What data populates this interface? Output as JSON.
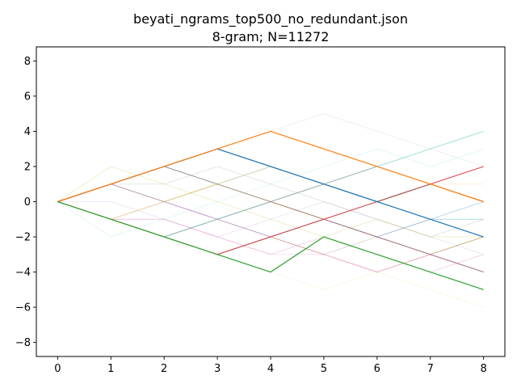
{
  "chart_data": {
    "type": "line",
    "title": "beyati_ngrams_top500_no_redundant.json",
    "subtitle": "8-gram; N=11272",
    "xlabel": "",
    "ylabel": "",
    "xlim": [
      -0.4,
      8.4
    ],
    "ylim": [
      -8.8,
      8.8
    ],
    "x_ticks": [
      0,
      1,
      2,
      3,
      4,
      5,
      6,
      7,
      8
    ],
    "y_ticks": [
      -8,
      -6,
      -4,
      -2,
      0,
      2,
      4,
      6,
      8
    ],
    "grid": false,
    "legend": "none",
    "x": [
      0,
      1,
      2,
      3,
      4,
      5,
      6,
      7,
      8
    ],
    "series": [
      {
        "color": "#1f77b4",
        "opacity": 1.0,
        "width": 1.2,
        "values": [
          0,
          1,
          2,
          3,
          2,
          1,
          0,
          -1,
          -2
        ]
      },
      {
        "color": "#ff7f0e",
        "opacity": 1.0,
        "width": 1.2,
        "values": [
          0,
          1,
          2,
          3,
          4,
          3,
          2,
          1,
          0
        ]
      },
      {
        "color": "#2ca02c",
        "opacity": 1.0,
        "width": 1.2,
        "values": [
          0,
          -1,
          -2,
          -3,
          -4,
          -2,
          -3,
          -4,
          -5
        ]
      },
      {
        "color": "#d62728",
        "opacity": 0.85,
        "width": 1.0,
        "values": [
          0,
          -1,
          -2,
          -3,
          -2,
          -1,
          0,
          1,
          2
        ]
      },
      {
        "color": "#8c564b",
        "opacity": 0.85,
        "width": 1.0,
        "values": [
          0,
          1,
          2,
          3,
          2,
          1,
          0,
          1,
          0
        ]
      },
      {
        "color": "#9467bd",
        "opacity": 0.5,
        "width": 0.9,
        "values": [
          0,
          1,
          0,
          -1,
          -2,
          -1,
          -2,
          -3,
          -4
        ]
      },
      {
        "color": "#8c564b",
        "opacity": 0.5,
        "width": 0.9,
        "values": [
          0,
          1,
          2,
          1,
          0,
          -1,
          -2,
          -3,
          -4
        ]
      },
      {
        "color": "#7f7f7f",
        "opacity": 0.5,
        "width": 0.9,
        "values": [
          0,
          1,
          2,
          1,
          0,
          1,
          2,
          1,
          0
        ]
      },
      {
        "color": "#bcbd22",
        "opacity": 0.4,
        "width": 0.8,
        "values": [
          0,
          1,
          0,
          1,
          2,
          1,
          0,
          -1,
          -2
        ]
      },
      {
        "color": "#17becf",
        "opacity": 0.4,
        "width": 0.8,
        "values": [
          0,
          -1,
          -2,
          -1,
          0,
          1,
          2,
          3,
          4
        ]
      },
      {
        "color": "#e377c2",
        "opacity": 0.4,
        "width": 0.8,
        "values": [
          0,
          -1,
          -1,
          -2,
          -3,
          -2,
          -3,
          -4,
          -3
        ]
      },
      {
        "color": "#1f77b4",
        "opacity": 0.35,
        "width": 0.8,
        "values": [
          0,
          -1,
          -2,
          -3,
          -2,
          -1,
          -2,
          -1,
          0
        ]
      },
      {
        "color": "#ff7f0e",
        "opacity": 0.35,
        "width": 0.8,
        "values": [
          0,
          -1,
          0,
          1,
          0,
          -1,
          -2,
          -3,
          -2
        ]
      },
      {
        "color": "#2ca02c",
        "opacity": 0.3,
        "width": 0.8,
        "values": [
          0,
          -1,
          -2,
          -1,
          0,
          -1,
          -2,
          -3,
          -2
        ]
      },
      {
        "color": "#d62728",
        "opacity": 0.35,
        "width": 0.8,
        "values": [
          0,
          -1,
          -2,
          -3,
          -2,
          -3,
          -4,
          -3,
          -4
        ]
      },
      {
        "color": "#9467bd",
        "opacity": 0.3,
        "width": 0.8,
        "values": [
          0,
          1,
          0,
          -1,
          0,
          -1,
          -2,
          -1,
          -2
        ]
      },
      {
        "color": "#8c564b",
        "opacity": 0.3,
        "width": 0.8,
        "values": [
          0,
          -1,
          -2,
          -1,
          -2,
          -3,
          -2,
          -3,
          -2
        ]
      },
      {
        "color": "#e377c2",
        "opacity": 0.3,
        "width": 0.8,
        "values": [
          0,
          -1,
          -1,
          -2,
          -3,
          -3,
          -4,
          -3,
          -4
        ]
      },
      {
        "color": "#7f7f7f",
        "opacity": 0.25,
        "width": 0.8,
        "values": [
          0,
          1,
          1,
          2,
          1,
          0,
          -1,
          -2,
          -1
        ]
      },
      {
        "color": "#bcbd22",
        "opacity": 0.3,
        "width": 0.8,
        "values": [
          0,
          2,
          1,
          0,
          -1,
          -2,
          -1,
          -2,
          -2
        ]
      },
      {
        "color": "#17becf",
        "opacity": 0.25,
        "width": 0.8,
        "values": [
          0,
          -1,
          -2,
          -3,
          -2,
          -1,
          0,
          -1,
          -1
        ]
      },
      {
        "color": "#1f77b4",
        "opacity": 0.25,
        "width": 0.8,
        "values": [
          0,
          1,
          2,
          1,
          2,
          1,
          0,
          -1,
          -1
        ]
      },
      {
        "color": "#2ca02c",
        "opacity": 0.2,
        "width": 0.8,
        "values": [
          0,
          -1,
          0,
          1,
          0,
          1,
          2,
          3,
          4
        ]
      },
      {
        "color": "#7f7f7f",
        "opacity": 0.15,
        "width": 0.8,
        "values": [
          0,
          1,
          2,
          3,
          4,
          5,
          4,
          3,
          2
        ]
      },
      {
        "color": "#bcbd22",
        "opacity": 0.15,
        "width": 0.8,
        "values": [
          0,
          -1,
          -2,
          -3,
          -4,
          -5,
          -4,
          -5,
          -6
        ]
      },
      {
        "color": "#17becf",
        "opacity": 0.15,
        "width": 0.8,
        "values": [
          0,
          -2,
          -1,
          0,
          1,
          2,
          3,
          2,
          3
        ]
      },
      {
        "color": "#9467bd",
        "opacity": 0.2,
        "width": 0.8,
        "values": [
          0,
          0,
          -1,
          -2,
          -1,
          0,
          -1,
          -2,
          -3
        ]
      },
      {
        "color": "#ff7f0e",
        "opacity": 0.2,
        "width": 0.8,
        "values": [
          0,
          1,
          0,
          -1,
          0,
          1,
          0,
          1,
          1
        ]
      },
      {
        "color": "#d62728",
        "opacity": 0.2,
        "width": 0.8,
        "values": [
          0,
          -1,
          -2,
          -1,
          0,
          -1,
          0,
          -1,
          -2
        ]
      }
    ]
  }
}
